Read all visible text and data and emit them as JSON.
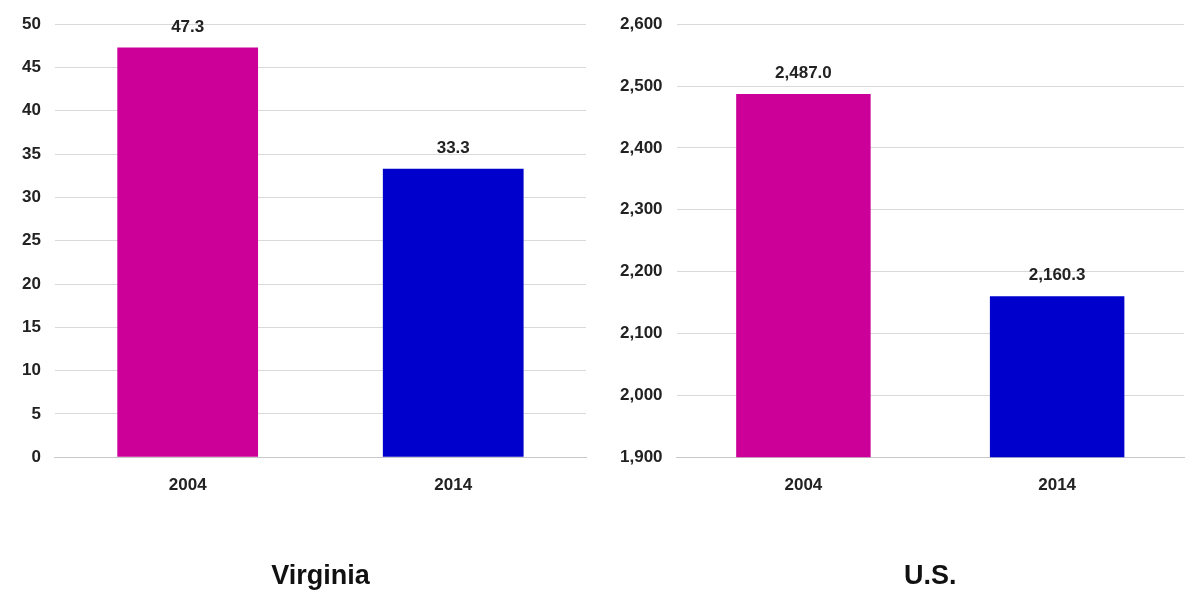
{
  "chart_data": [
    {
      "type": "bar",
      "xlabel": "Virginia",
      "categories": [
        "2004",
        "2014"
      ],
      "values": [
        47.3,
        33.3
      ],
      "colors": [
        "#cc0099",
        "#0000cc"
      ],
      "ylim": [
        0,
        50
      ],
      "yticks": [
        0,
        5,
        10,
        15,
        20,
        25,
        30,
        35,
        40,
        45,
        50
      ],
      "grid": "y",
      "data_labels": true
    },
    {
      "type": "bar",
      "xlabel": "U.S.",
      "categories": [
        "2004",
        "2014"
      ],
      "values": [
        2487.0,
        2160.3
      ],
      "value_labels": [
        "2,487.0",
        "2,160.3"
      ],
      "colors": [
        "#cc0099",
        "#0000cc"
      ],
      "ylim": [
        1900,
        2600
      ],
      "grid": "y",
      "yticks": [
        {
          "value": 1900,
          "label": "1,900"
        },
        {
          "value": 2000,
          "label": "2,000"
        },
        {
          "value": 2100,
          "label": "2,100"
        },
        {
          "value": 2200,
          "label": "2,200"
        },
        {
          "value": 2300,
          "label": "2,300"
        },
        {
          "value": 2400,
          "label": "2,400"
        },
        {
          "value": 2500,
          "label": "2,500"
        },
        {
          "value": 2600,
          "label": "2,600"
        }
      ]
    }
  ]
}
